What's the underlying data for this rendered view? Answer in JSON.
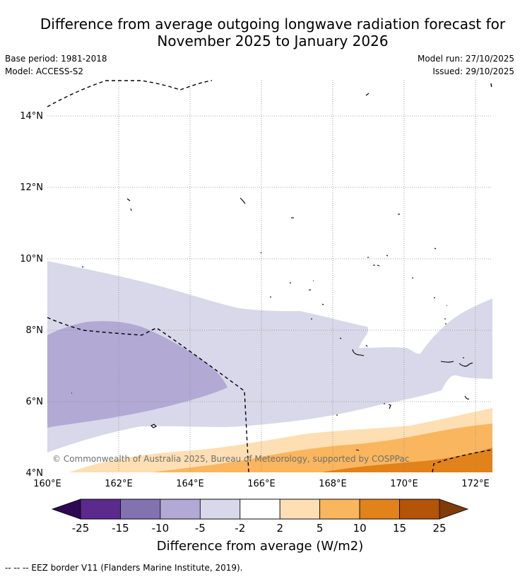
{
  "title_line1": "Difference from average outgoing longwave radiation forecast for",
  "title_line2": "November 2025 to January 2026",
  "base_period": "Base period: 1981-2018",
  "model": "Model: ACCESS-S2",
  "model_run": "Model run: 27/10/2025",
  "issued": "Issued: 29/10/2025",
  "copyright": "© Commonwealth of Australia 2025, Bureau of Meteorology, supported by COSPPac",
  "lat_labels": [
    "4°N",
    "6°N",
    "8°N",
    "10°N",
    "12°N",
    "14°N"
  ],
  "lon_labels": [
    "160°E",
    "162°E",
    "164°E",
    "166°E",
    "168°E",
    "170°E",
    "172°E"
  ],
  "colorbar": {
    "ticks": [
      "-25",
      "-15",
      "-10",
      "-5",
      "-2",
      "2",
      "5",
      "10",
      "15",
      "25"
    ],
    "colors": [
      "#5c2a8c",
      "#8272b0",
      "#b2a9d4",
      "#d8d8ea",
      "#ffffff",
      "#fddfb3",
      "#f9b65e",
      "#e1821a",
      "#b35408"
    ],
    "under_color": "#2e0854",
    "over_color": "#7f3b08",
    "label": "Difference from average (W/m2)"
  },
  "eez_note": "-- -- -- EEZ border V11 (Flanders Marine Institute, 2019)."
}
